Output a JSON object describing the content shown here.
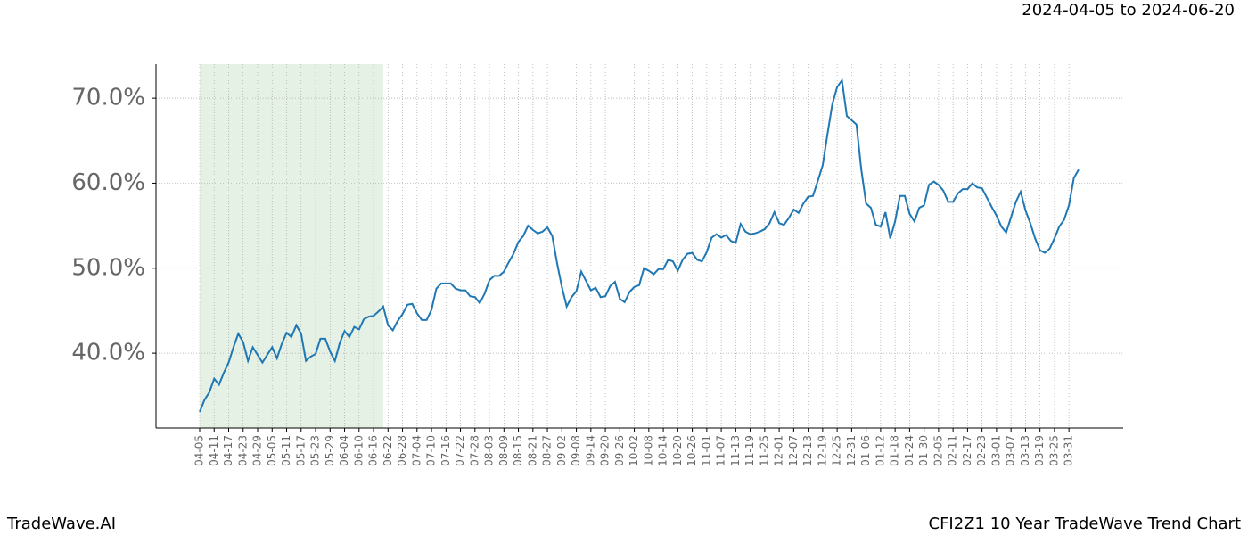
{
  "chart_data": {
    "type": "line",
    "title": "2024-04-05 to 2024-06-20",
    "brand": "TradeWave.AI",
    "caption": "CFI2Z1 10 Year TradeWave Trend Chart",
    "color": "#1f77b4",
    "highlight": [
      0,
      38
    ],
    "highlight_color": "#d5e8d4",
    "grid": true,
    "ylim": [
      31.2,
      74
    ],
    "yticks": [
      {
        "value": 40,
        "label": "40.0%"
      },
      {
        "value": 50,
        "label": "50.0%"
      },
      {
        "value": 60,
        "label": "60.0%"
      },
      {
        "value": 70,
        "label": "70.0%"
      }
    ],
    "categories": [
      "04-05",
      null,
      null,
      "04-11",
      null,
      null,
      "04-17",
      null,
      null,
      "04-23",
      null,
      null,
      "04-29",
      null,
      null,
      "05-05",
      null,
      null,
      "05-11",
      null,
      null,
      "05-17",
      null,
      null,
      "05-23",
      null,
      null,
      "05-29",
      null,
      null,
      "06-04",
      null,
      null,
      "06-10",
      null,
      null,
      "06-16",
      null,
      null,
      "06-22",
      null,
      null,
      "06-28",
      null,
      null,
      "07-04",
      null,
      null,
      "07-10",
      null,
      null,
      "07-16",
      null,
      null,
      "07-22",
      null,
      null,
      "07-28",
      null,
      null,
      "08-03",
      null,
      null,
      "08-09",
      null,
      null,
      "08-15",
      null,
      null,
      "08-21",
      null,
      null,
      "08-27",
      null,
      null,
      "09-02",
      null,
      null,
      "09-08",
      null,
      null,
      "09-14",
      null,
      null,
      "09-20",
      null,
      null,
      "09-26",
      null,
      null,
      "10-02",
      null,
      null,
      "10-08",
      null,
      null,
      "10-14",
      null,
      null,
      "10-20",
      null,
      null,
      "10-26",
      null,
      null,
      "11-01",
      null,
      null,
      "11-07",
      null,
      null,
      "11-13",
      null,
      null,
      "11-19",
      null,
      null,
      "11-25",
      null,
      null,
      "12-01",
      null,
      null,
      "12-07",
      null,
      null,
      "12-13",
      null,
      null,
      "12-19",
      null,
      null,
      "12-25",
      null,
      null,
      "12-31",
      null,
      null,
      "01-06",
      null,
      null,
      "01-12",
      null,
      null,
      "01-18",
      null,
      null,
      "01-24",
      null,
      null,
      "01-30",
      null,
      null,
      "02-05",
      null,
      null,
      "02-11",
      null,
      null,
      "02-17",
      null,
      null,
      "02-23",
      null,
      null,
      "03-01",
      null,
      null,
      "03-07",
      null,
      null,
      "03-13",
      null,
      null,
      "03-19",
      null,
      null,
      "03-25",
      null,
      null,
      "03-31",
      null,
      null
    ],
    "values": [
      33.1,
      34.5,
      35.4,
      37.0,
      36.3,
      37.7,
      38.9,
      40.7,
      42.3,
      41.3,
      39.1,
      40.7,
      39.8,
      38.9,
      39.8,
      40.7,
      39.4,
      41.1,
      42.4,
      41.9,
      43.3,
      42.3,
      39.1,
      39.6,
      39.9,
      41.7,
      41.7,
      40.2,
      39.1,
      41.2,
      42.6,
      41.9,
      43.1,
      42.8,
      44.0,
      44.3,
      44.4,
      44.9,
      45.5,
      43.3,
      42.7,
      43.8,
      44.6,
      45.7,
      45.8,
      44.7,
      43.9,
      43.9,
      45.1,
      47.6,
      48.2,
      48.2,
      48.2,
      47.6,
      47.4,
      47.4,
      46.7,
      46.6,
      45.9,
      47.0,
      48.6,
      49.1,
      49.1,
      49.6,
      50.7,
      51.7,
      53.1,
      53.8,
      55.0,
      54.5,
      54.1,
      54.3,
      54.8,
      53.8,
      50.6,
      47.8,
      45.5,
      46.6,
      47.3,
      49.6,
      48.5,
      47.4,
      47.7,
      46.6,
      46.7,
      47.9,
      48.4,
      46.4,
      46.0,
      47.2,
      47.8,
      48.0,
      50.0,
      49.7,
      49.3,
      49.9,
      49.9,
      51.0,
      50.8,
      49.7,
      51.0,
      51.7,
      51.8,
      51.0,
      50.8,
      51.9,
      53.6,
      54.0,
      53.6,
      53.9,
      53.2,
      53.0,
      55.2,
      54.3,
      54.0,
      54.1,
      54.3,
      54.6,
      55.3,
      56.6,
      55.3,
      55.1,
      55.9,
      56.9,
      56.5,
      57.6,
      58.4,
      58.5,
      60.3,
      62.1,
      65.8,
      69.3,
      71.3,
      72.1,
      67.9,
      67.4,
      66.9,
      61.6,
      57.6,
      57.1,
      55.1,
      54.9,
      56.6,
      53.5,
      55.5,
      58.5,
      58.5,
      56.4,
      55.5,
      57.1,
      57.4,
      59.8,
      60.2,
      59.8,
      59.1,
      57.8,
      57.8,
      58.8,
      59.3,
      59.3,
      60.0,
      59.5,
      59.4,
      58.3,
      57.2,
      56.2,
      54.9,
      54.2,
      56.0,
      57.8,
      59.0,
      56.8,
      55.3,
      53.5,
      52.1,
      51.8,
      52.3,
      53.5,
      54.9,
      55.7,
      57.4,
      60.6,
      61.6
    ]
  }
}
